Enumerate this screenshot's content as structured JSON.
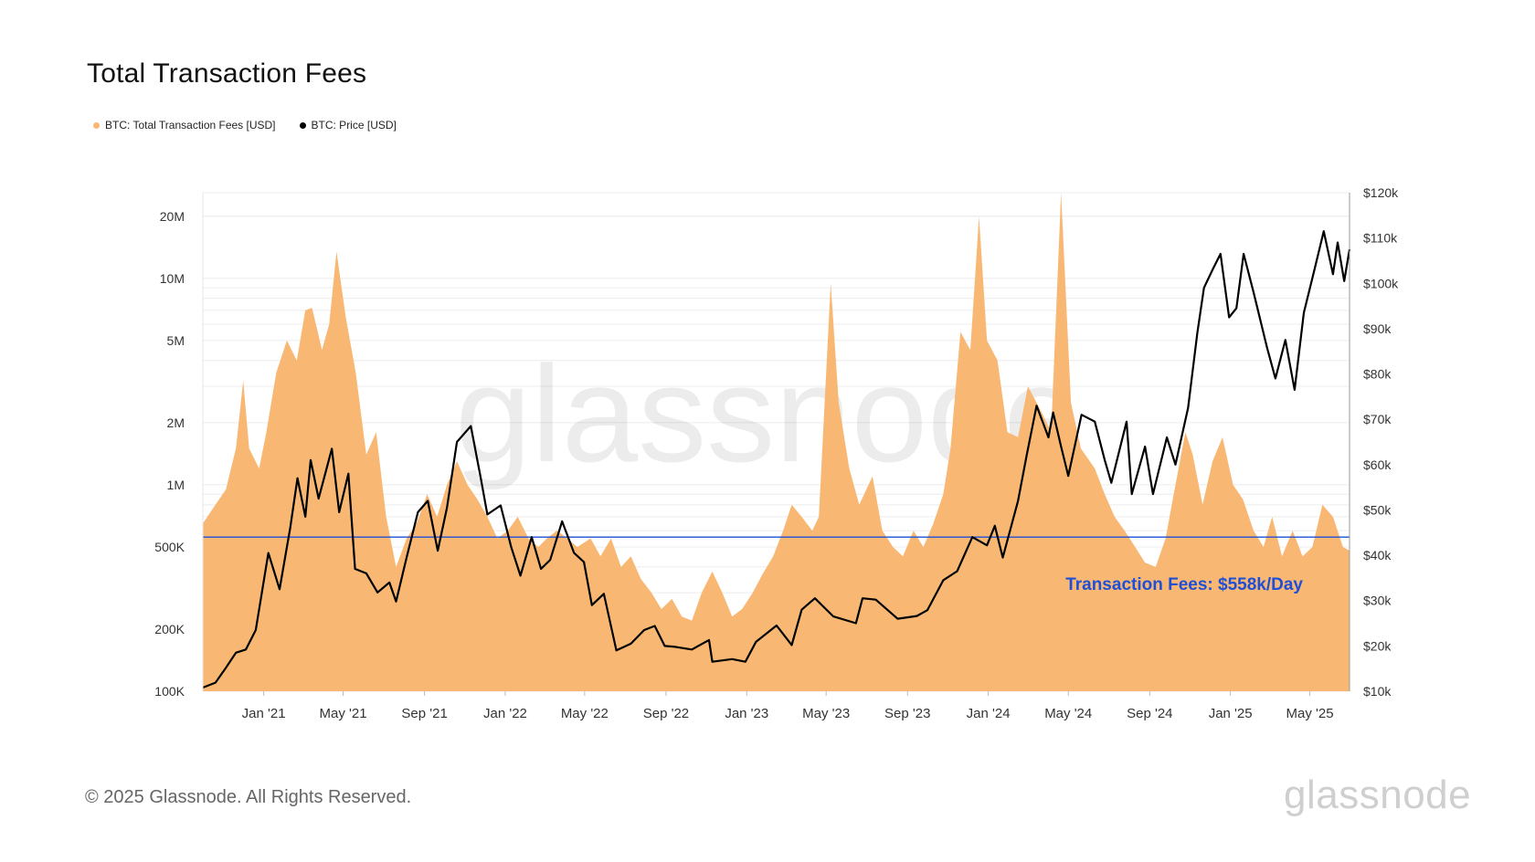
{
  "title": "Total Transaction Fees",
  "legend": [
    {
      "label": "BTC: Total Transaction Fees [USD]",
      "color": "#f8b873"
    },
    {
      "label": "BTC: Price [USD]",
      "color": "#000000"
    }
  ],
  "footer": {
    "copyright": "© 2025 Glassnode. All Rights Reserved.",
    "logo": "glassnode"
  },
  "watermark": "glassnode",
  "chart_data": {
    "type": "area",
    "left_axis": {
      "scale": "log",
      "range": [
        100000,
        26000000
      ],
      "ticks": [
        "100K",
        "200K",
        "500K",
        "1M",
        "2M",
        "5M",
        "10M",
        "20M"
      ],
      "tick_values": [
        100000,
        200000,
        500000,
        1000000,
        2000000,
        5000000,
        10000000,
        20000000
      ]
    },
    "right_axis": {
      "scale": "linear",
      "range": [
        10000,
        120000
      ],
      "ticks": [
        "$10k",
        "$20k",
        "$30k",
        "$40k",
        "$50k",
        "$60k",
        "$70k",
        "$80k",
        "$90k",
        "$100k",
        "$110k",
        "$120k"
      ],
      "tick_values": [
        10000,
        20000,
        30000,
        40000,
        50000,
        60000,
        70000,
        80000,
        90000,
        100000,
        110000,
        120000
      ]
    },
    "x_axis": {
      "range": [
        "2020-10-01",
        "2025-06-30"
      ],
      "ticks": [
        "Jan '21",
        "May '21",
        "Sep '21",
        "Jan '22",
        "May '22",
        "Sep '22",
        "Jan '23",
        "May '23",
        "Sep '23",
        "Jan '24",
        "May '24",
        "Sep '24",
        "Jan '25",
        "May '25"
      ],
      "tick_dates": [
        "2021-01-01",
        "2021-05-01",
        "2021-09-01",
        "2022-01-01",
        "2022-05-01",
        "2022-09-01",
        "2023-01-01",
        "2023-05-01",
        "2023-09-01",
        "2024-01-01",
        "2024-05-01",
        "2024-09-01",
        "2025-01-01",
        "2025-05-01"
      ]
    },
    "series": [
      {
        "name": "BTC: Total Transaction Fees [USD]",
        "color": "#f8b873",
        "axis": "left",
        "points": [
          [
            "2020-10-01",
            650000
          ],
          [
            "2020-10-20",
            800000
          ],
          [
            "2020-11-05",
            950000
          ],
          [
            "2020-11-20",
            1500000
          ],
          [
            "2020-12-01",
            3200000
          ],
          [
            "2020-12-10",
            1500000
          ],
          [
            "2020-12-25",
            1200000
          ],
          [
            "2021-01-05",
            1800000
          ],
          [
            "2021-01-20",
            3500000
          ],
          [
            "2021-02-05",
            5000000
          ],
          [
            "2021-02-20",
            4000000
          ],
          [
            "2021-03-05",
            7000000
          ],
          [
            "2021-03-15",
            7200000
          ],
          [
            "2021-03-30",
            4500000
          ],
          [
            "2021-04-10",
            6000000
          ],
          [
            "2021-04-21",
            13500000
          ],
          [
            "2021-05-05",
            6500000
          ],
          [
            "2021-05-20",
            3500000
          ],
          [
            "2021-06-05",
            1400000
          ],
          [
            "2021-06-20",
            1800000
          ],
          [
            "2021-07-05",
            700000
          ],
          [
            "2021-07-20",
            400000
          ],
          [
            "2021-08-05",
            550000
          ],
          [
            "2021-08-20",
            650000
          ],
          [
            "2021-09-05",
            900000
          ],
          [
            "2021-09-20",
            700000
          ],
          [
            "2021-10-05",
            1000000
          ],
          [
            "2021-10-20",
            1300000
          ],
          [
            "2021-11-05",
            1000000
          ],
          [
            "2021-11-20",
            850000
          ],
          [
            "2021-12-05",
            700000
          ],
          [
            "2021-12-20",
            550000
          ],
          [
            "2022-01-05",
            600000
          ],
          [
            "2022-01-20",
            700000
          ],
          [
            "2022-02-05",
            550000
          ],
          [
            "2022-02-20",
            500000
          ],
          [
            "2022-03-05",
            550000
          ],
          [
            "2022-03-20",
            600000
          ],
          [
            "2022-04-05",
            550000
          ],
          [
            "2022-04-20",
            500000
          ],
          [
            "2022-05-10",
            550000
          ],
          [
            "2022-05-25",
            450000
          ],
          [
            "2022-06-10",
            550000
          ],
          [
            "2022-06-25",
            400000
          ],
          [
            "2022-07-10",
            450000
          ],
          [
            "2022-07-25",
            350000
          ],
          [
            "2022-08-10",
            300000
          ],
          [
            "2022-08-25",
            250000
          ],
          [
            "2022-09-10",
            280000
          ],
          [
            "2022-09-25",
            230000
          ],
          [
            "2022-10-10",
            220000
          ],
          [
            "2022-10-25",
            300000
          ],
          [
            "2022-11-10",
            380000
          ],
          [
            "2022-11-25",
            300000
          ],
          [
            "2022-12-10",
            230000
          ],
          [
            "2022-12-25",
            250000
          ],
          [
            "2023-01-10",
            300000
          ],
          [
            "2023-01-25",
            370000
          ],
          [
            "2023-02-10",
            450000
          ],
          [
            "2023-02-25",
            600000
          ],
          [
            "2023-03-10",
            800000
          ],
          [
            "2023-03-25",
            700000
          ],
          [
            "2023-04-10",
            600000
          ],
          [
            "2023-04-20",
            700000
          ],
          [
            "2023-05-08",
            9500000
          ],
          [
            "2023-05-20",
            2500000
          ],
          [
            "2023-06-05",
            1200000
          ],
          [
            "2023-06-20",
            800000
          ],
          [
            "2023-07-10",
            1100000
          ],
          [
            "2023-07-25",
            600000
          ],
          [
            "2023-08-10",
            500000
          ],
          [
            "2023-08-25",
            450000
          ],
          [
            "2023-09-10",
            600000
          ],
          [
            "2023-09-25",
            500000
          ],
          [
            "2023-10-10",
            650000
          ],
          [
            "2023-10-25",
            900000
          ],
          [
            "2023-11-05",
            1500000
          ],
          [
            "2023-11-20",
            5500000
          ],
          [
            "2023-12-05",
            4500000
          ],
          [
            "2023-12-18",
            20000000
          ],
          [
            "2023-12-30",
            5000000
          ],
          [
            "2024-01-15",
            4000000
          ],
          [
            "2024-01-30",
            1800000
          ],
          [
            "2024-02-15",
            1700000
          ],
          [
            "2024-03-01",
            3000000
          ],
          [
            "2024-03-20",
            2300000
          ],
          [
            "2024-04-05",
            1800000
          ],
          [
            "2024-04-20",
            26000000
          ],
          [
            "2024-05-05",
            2500000
          ],
          [
            "2024-05-20",
            1500000
          ],
          [
            "2024-06-10",
            1200000
          ],
          [
            "2024-06-25",
            900000
          ],
          [
            "2024-07-10",
            700000
          ],
          [
            "2024-07-25",
            600000
          ],
          [
            "2024-08-10",
            500000
          ],
          [
            "2024-08-25",
            420000
          ],
          [
            "2024-09-10",
            400000
          ],
          [
            "2024-09-25",
            550000
          ],
          [
            "2024-10-10",
            1000000
          ],
          [
            "2024-10-25",
            1800000
          ],
          [
            "2024-11-05",
            1400000
          ],
          [
            "2024-11-20",
            800000
          ],
          [
            "2024-12-05",
            1300000
          ],
          [
            "2024-12-20",
            1700000
          ],
          [
            "2025-01-05",
            1000000
          ],
          [
            "2025-01-20",
            850000
          ],
          [
            "2025-02-05",
            600000
          ],
          [
            "2025-02-20",
            500000
          ],
          [
            "2025-03-05",
            700000
          ],
          [
            "2025-03-20",
            450000
          ],
          [
            "2025-04-05",
            600000
          ],
          [
            "2025-04-20",
            450000
          ],
          [
            "2025-05-05",
            500000
          ],
          [
            "2025-05-20",
            800000
          ],
          [
            "2025-06-05",
            700000
          ],
          [
            "2025-06-20",
            500000
          ],
          [
            "2025-06-30",
            480000
          ]
        ]
      },
      {
        "name": "BTC: Price [USD]",
        "color": "#000000",
        "axis": "right",
        "points": [
          [
            "2020-10-01",
            10800
          ],
          [
            "2020-10-20",
            11900
          ],
          [
            "2020-11-05",
            15200
          ],
          [
            "2020-11-20",
            18500
          ],
          [
            "2020-12-05",
            19200
          ],
          [
            "2020-12-20",
            23500
          ],
          [
            "2021-01-08",
            40500
          ],
          [
            "2021-01-25",
            32500
          ],
          [
            "2021-02-10",
            46000
          ],
          [
            "2021-02-21",
            57000
          ],
          [
            "2021-03-05",
            48500
          ],
          [
            "2021-03-13",
            61000
          ],
          [
            "2021-03-25",
            52500
          ],
          [
            "2021-04-14",
            63500
          ],
          [
            "2021-04-25",
            49500
          ],
          [
            "2021-05-09",
            58000
          ],
          [
            "2021-05-19",
            37000
          ],
          [
            "2021-06-05",
            36000
          ],
          [
            "2021-06-22",
            31800
          ],
          [
            "2021-07-10",
            34000
          ],
          [
            "2021-07-20",
            29800
          ],
          [
            "2021-08-05",
            39500
          ],
          [
            "2021-08-22",
            49500
          ],
          [
            "2021-09-06",
            52000
          ],
          [
            "2021-09-21",
            41000
          ],
          [
            "2021-10-05",
            50500
          ],
          [
            "2021-10-20",
            65000
          ],
          [
            "2021-11-10",
            68500
          ],
          [
            "2021-11-25",
            57000
          ],
          [
            "2021-12-05",
            49000
          ],
          [
            "2021-12-25",
            51000
          ],
          [
            "2022-01-10",
            41800
          ],
          [
            "2022-01-24",
            35500
          ],
          [
            "2022-02-10",
            44000
          ],
          [
            "2022-02-24",
            37000
          ],
          [
            "2022-03-10",
            39000
          ],
          [
            "2022-03-28",
            47500
          ],
          [
            "2022-04-15",
            40500
          ],
          [
            "2022-04-30",
            38500
          ],
          [
            "2022-05-12",
            29000
          ],
          [
            "2022-05-30",
            31500
          ],
          [
            "2022-06-18",
            19000
          ],
          [
            "2022-07-10",
            20500
          ],
          [
            "2022-07-30",
            23500
          ],
          [
            "2022-08-15",
            24400
          ],
          [
            "2022-08-30",
            20000
          ],
          [
            "2022-09-15",
            19800
          ],
          [
            "2022-10-10",
            19200
          ],
          [
            "2022-11-05",
            21300
          ],
          [
            "2022-11-10",
            16500
          ],
          [
            "2022-12-10",
            17100
          ],
          [
            "2022-12-30",
            16500
          ],
          [
            "2023-01-15",
            20900
          ],
          [
            "2023-02-15",
            24500
          ],
          [
            "2023-03-10",
            20200
          ],
          [
            "2023-03-25",
            28000
          ],
          [
            "2023-04-14",
            30500
          ],
          [
            "2023-05-12",
            26500
          ],
          [
            "2023-06-15",
            25000
          ],
          [
            "2023-06-25",
            30500
          ],
          [
            "2023-07-15",
            30200
          ],
          [
            "2023-08-17",
            26000
          ],
          [
            "2023-09-15",
            26600
          ],
          [
            "2023-10-01",
            27900
          ],
          [
            "2023-10-25",
            34500
          ],
          [
            "2023-11-15",
            36500
          ],
          [
            "2023-12-08",
            44000
          ],
          [
            "2023-12-30",
            42200
          ],
          [
            "2024-01-11",
            46500
          ],
          [
            "2024-01-23",
            39500
          ],
          [
            "2024-02-15",
            52000
          ],
          [
            "2024-02-28",
            62000
          ],
          [
            "2024-03-14",
            73000
          ],
          [
            "2024-04-01",
            66000
          ],
          [
            "2024-04-08",
            71500
          ],
          [
            "2024-04-20",
            64000
          ],
          [
            "2024-05-01",
            57500
          ],
          [
            "2024-05-21",
            71000
          ],
          [
            "2024-06-10",
            69500
          ],
          [
            "2024-06-25",
            61000
          ],
          [
            "2024-07-05",
            56000
          ],
          [
            "2024-07-28",
            69500
          ],
          [
            "2024-08-05",
            53500
          ],
          [
            "2024-08-25",
            64000
          ],
          [
            "2024-09-06",
            53500
          ],
          [
            "2024-09-27",
            66000
          ],
          [
            "2024-10-10",
            60000
          ],
          [
            "2024-10-29",
            72500
          ],
          [
            "2024-11-12",
            89000
          ],
          [
            "2024-11-22",
            99000
          ],
          [
            "2024-12-05",
            103000
          ],
          [
            "2024-12-17",
            106500
          ],
          [
            "2024-12-30",
            92500
          ],
          [
            "2025-01-10",
            94500
          ],
          [
            "2025-01-21",
            106500
          ],
          [
            "2025-02-05",
            98000
          ],
          [
            "2025-02-25",
            86000
          ],
          [
            "2025-03-10",
            79000
          ],
          [
            "2025-03-25",
            87500
          ],
          [
            "2025-04-08",
            76500
          ],
          [
            "2025-04-22",
            93500
          ],
          [
            "2025-05-08",
            103000
          ],
          [
            "2025-05-22",
            111500
          ],
          [
            "2025-06-05",
            102000
          ],
          [
            "2025-06-12",
            109000
          ],
          [
            "2025-06-22",
            100500
          ],
          [
            "2025-06-30",
            107500
          ]
        ]
      }
    ],
    "reference_line": {
      "value": 558000,
      "axis": "left",
      "color": "#1f4fd6",
      "label": "Transaction Fees: $558k/Day"
    }
  }
}
